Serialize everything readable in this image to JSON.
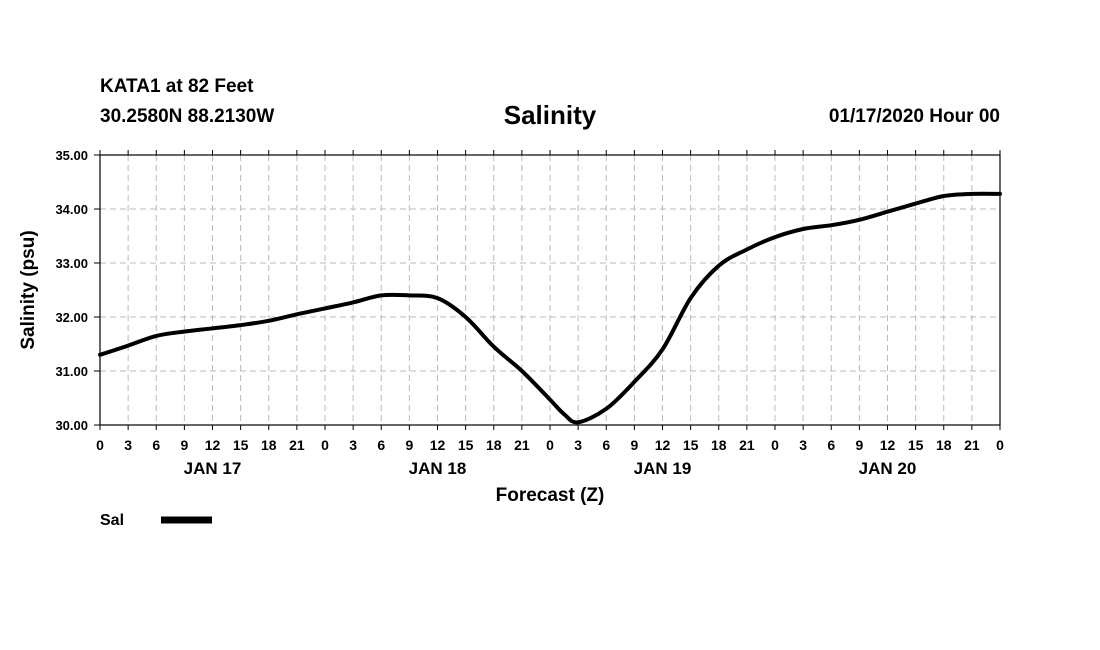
{
  "header": {
    "station": "KATA1 at 82 Feet",
    "coords": "30.2580N 88.2130W",
    "title": "Salinity",
    "issued": "01/17/2020 Hour 00"
  },
  "chart_data": {
    "type": "line",
    "title": "Salinity",
    "xlabel": "Forecast (Z)",
    "ylabel": "Salinity (psu)",
    "ylim": [
      30,
      35
    ],
    "yticks": [
      "30.00",
      "31.00",
      "32.00",
      "33.00",
      "34.00",
      "35.00"
    ],
    "xlim": [
      0,
      96
    ],
    "xticks": [
      "0",
      "3",
      "6",
      "9",
      "12",
      "15",
      "18",
      "21",
      "0",
      "3",
      "6",
      "9",
      "12",
      "15",
      "18",
      "21",
      "0",
      "3",
      "6",
      "9",
      "12",
      "15",
      "18",
      "21",
      "0",
      "3",
      "6",
      "9",
      "12",
      "15",
      "18",
      "21",
      "0"
    ],
    "day_labels": [
      {
        "label": "JAN 17",
        "hour": 12
      },
      {
        "label": "JAN 18",
        "hour": 36
      },
      {
        "label": "JAN 19",
        "hour": 60
      },
      {
        "label": "JAN 20",
        "hour": 84
      }
    ],
    "grid": true,
    "legend": "bottom-left",
    "series": [
      {
        "name": "Sal",
        "color": "#000000",
        "x": [
          0,
          3,
          6,
          9,
          12,
          15,
          18,
          21,
          24,
          27,
          30,
          33,
          36,
          39,
          42,
          45,
          48,
          49.5,
          51,
          54,
          57,
          60,
          63,
          66,
          69,
          72,
          75,
          78,
          81,
          84,
          87,
          90,
          93,
          96
        ],
        "y": [
          31.3,
          31.47,
          31.65,
          31.73,
          31.79,
          31.85,
          31.93,
          32.05,
          32.16,
          32.27,
          32.4,
          32.4,
          32.35,
          32.0,
          31.45,
          31.0,
          30.47,
          30.2,
          30.05,
          30.3,
          30.8,
          31.4,
          32.35,
          32.95,
          33.25,
          33.48,
          33.63,
          33.7,
          33.8,
          33.95,
          34.1,
          34.24,
          34.28,
          34.28
        ]
      }
    ]
  }
}
